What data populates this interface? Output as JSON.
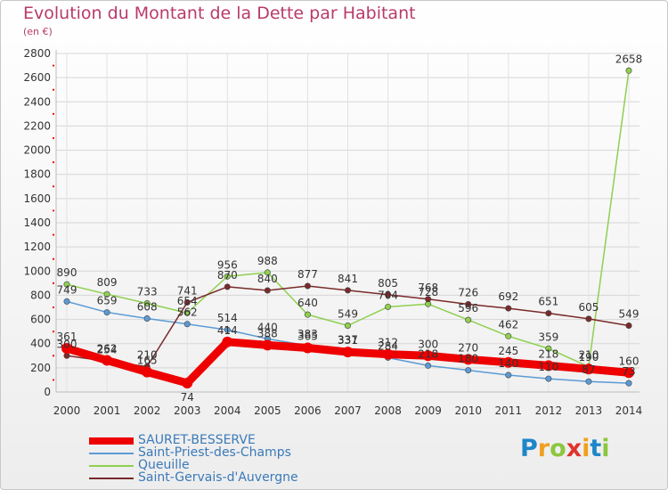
{
  "header": {
    "title": "Evolution du Montant de la Dette par Habitant",
    "unit": "(en €)"
  },
  "colors": {
    "title": "#b83a6a",
    "series": [
      "#ee0000",
      "#5b9bd5",
      "#8ed04f",
      "#7a2a2a"
    ],
    "legend_text": "#3a7ab8"
  },
  "logo": {
    "text": "Proxiti"
  },
  "chart_data": {
    "type": "line",
    "title": "Evolution du Montant de la Dette par Habitant",
    "ylabel": "(en €)",
    "xlabel": "",
    "x": [
      "2000",
      "2001",
      "2002",
      "2003",
      "2004",
      "2005",
      "2006",
      "2007",
      "2008",
      "2009",
      "2010",
      "2011",
      "2012",
      "2013",
      "2014"
    ],
    "ylim": [
      0,
      2800
    ],
    "yticks": [
      0,
      200,
      400,
      600,
      800,
      1000,
      1200,
      1400,
      1600,
      1800,
      2000,
      2200,
      2400,
      2600,
      2800
    ],
    "grid": true,
    "legend": "bottom-left",
    "series": [
      {
        "name": "SAURET-BESSERVE",
        "values": [
          361,
          262,
          165,
          74,
          414,
          388,
          365,
          331,
          312,
          300,
          270,
          245,
          218,
          190,
          160
        ],
        "labels": [
          "361",
          "262",
          "165",
          "74",
          "414",
          "388",
          "365",
          "331",
          "312",
          "300",
          "270",
          "245",
          "218",
          "190",
          "160"
        ]
      },
      {
        "name": "Saint-Priest-des-Champs",
        "values": [
          749,
          659,
          608,
          562,
          514,
          440,
          383,
          337,
          284,
          218,
          180,
          140,
          110,
          87,
          73
        ],
        "labels": [
          "749",
          "659",
          "608",
          "562",
          "514",
          "440",
          "383",
          "337",
          "284",
          "218",
          "180",
          "140",
          "110",
          "87",
          "73"
        ]
      },
      {
        "name": "Queuille",
        "values": [
          890,
          809,
          733,
          654,
          956,
          988,
          640,
          549,
          704,
          728,
          596,
          462,
          359,
          210,
          2658
        ],
        "labels": [
          "890",
          "809",
          "733",
          "654",
          "956",
          "988",
          "640",
          "549",
          "704",
          "728",
          "596",
          "462",
          "359",
          "210",
          "2658"
        ]
      },
      {
        "name": "Saint-Gervais-d'Auvergne",
        "values": [
          300,
          254,
          210,
          741,
          870,
          840,
          877,
          841,
          805,
          768,
          726,
          692,
          651,
          605,
          549
        ],
        "labels": [
          "300",
          "254",
          "210",
          "741",
          "870",
          "840",
          "877",
          "841",
          "805",
          "768",
          "726",
          "692",
          "651",
          "605",
          "549"
        ]
      }
    ]
  }
}
